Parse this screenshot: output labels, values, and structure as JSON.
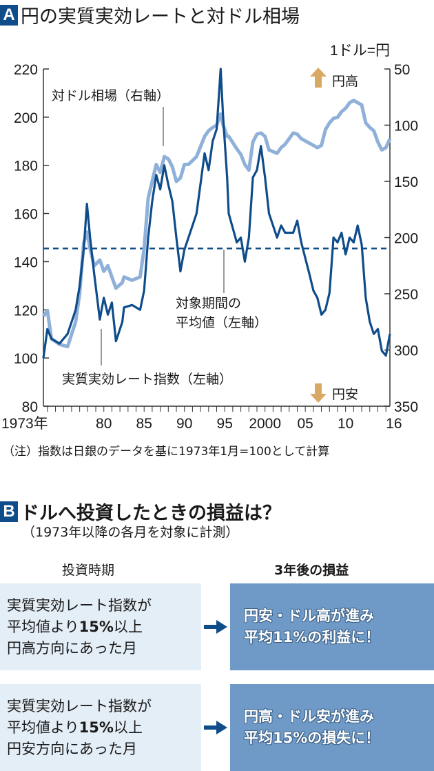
{
  "section_a": {
    "badge": "A",
    "title": "円の実質実効レートと対ドル相場",
    "note": "（注）指数は日銀のデータを基に1973年1月=100として計算"
  },
  "chart_data": {
    "type": "line",
    "title": "円の実質実効レートと対ドル相場",
    "xlabel": "",
    "x_ticks": [
      "1973年",
      "80",
      "85",
      "90",
      "95",
      "2000",
      "05",
      "10",
      "16"
    ],
    "x_range": [
      1973,
      2016
    ],
    "left_axis": {
      "label": "",
      "ticks": [
        80,
        100,
        120,
        140,
        160,
        180,
        200,
        220
      ],
      "range": [
        80,
        220
      ]
    },
    "right_axis": {
      "label": "1ドル=円",
      "ticks": [
        50,
        100,
        150,
        200,
        250,
        300,
        350
      ],
      "range": [
        50,
        350
      ],
      "inverted": true
    },
    "grid": false,
    "series": [
      {
        "name": "実質実効レート指数（左軸）",
        "axis": "left",
        "color": "#0f4c8a",
        "x": [
          1973.0,
          1973.5,
          1974,
          1975,
          1976,
          1977,
          1977.5,
          1978,
          1978.4,
          1978.8,
          1979.3,
          1980,
          1980.5,
          1981,
          1981.5,
          1982,
          1982.8,
          1983,
          1984,
          1985,
          1985.5,
          1986,
          1986.5,
          1987,
          1987.5,
          1988,
          1988.5,
          1989,
          1989.5,
          1990,
          1990.5,
          1991,
          1992,
          1993,
          1993.5,
          1994,
          1994.5,
          1995,
          1995.3,
          1995.8,
          1996,
          1997,
          1997.5,
          1998,
          1998.5,
          1999,
          1999.5,
          2000,
          2000.5,
          2001,
          2002,
          2002.5,
          2003,
          2004,
          2004.5,
          2005,
          2006,
          2006.5,
          2007,
          2007.5,
          2008,
          2008.5,
          2009,
          2009.5,
          2010,
          2010.5,
          2011,
          2011.5,
          2012,
          2012.5,
          2013,
          2013.5,
          2014,
          2014.5,
          2015,
          2015.5,
          2016
        ],
        "values": [
          100,
          112,
          108,
          106,
          110,
          120,
          130,
          145,
          164,
          150,
          135,
          116,
          125,
          118,
          123,
          107,
          115,
          121,
          122,
          120,
          128,
          150,
          165,
          176,
          170,
          180,
          172,
          165,
          150,
          136,
          145,
          150,
          160,
          185,
          178,
          190,
          195,
          220,
          200,
          175,
          160,
          148,
          150,
          140,
          150,
          175,
          178,
          188,
          175,
          160,
          150,
          155,
          152,
          152,
          157,
          148,
          135,
          128,
          125,
          118,
          120,
          127,
          150,
          148,
          152,
          143,
          150,
          148,
          155,
          147,
          125,
          115,
          110,
          112,
          103,
          101,
          110
        ]
      },
      {
        "name": "対ドル相場（右軸）",
        "axis": "right",
        "color": "#8fb0d8",
        "x": [
          1973.0,
          1973.5,
          1974,
          1975,
          1976,
          1977,
          1977.5,
          1978,
          1978.4,
          1978.8,
          1979.3,
          1980,
          1980.5,
          1981,
          1981.5,
          1982,
          1982.8,
          1983,
          1984,
          1985,
          1985.5,
          1986,
          1986.5,
          1987,
          1987.5,
          1988,
          1988.5,
          1989,
          1989.5,
          1990,
          1990.5,
          1991,
          1992,
          1993,
          1993.5,
          1994,
          1994.5,
          1995,
          1995.3,
          1995.8,
          1996,
          1997,
          1997.5,
          1998,
          1998.5,
          1999,
          1999.5,
          2000,
          2000.5,
          2001,
          2002,
          2002.5,
          2003,
          2004,
          2004.5,
          2005,
          2006,
          2006.5,
          2007,
          2007.5,
          2008,
          2008.5,
          2009,
          2009.5,
          2010,
          2010.5,
          2011,
          2011.5,
          2012,
          2012.5,
          2013,
          2013.5,
          2014,
          2014.5,
          2015,
          2015.5,
          2016
        ],
        "values": [
          270,
          265,
          290,
          295,
          297,
          275,
          250,
          205,
          195,
          210,
          225,
          220,
          230,
          225,
          235,
          245,
          240,
          235,
          238,
          235,
          210,
          165,
          150,
          135,
          142,
          128,
          130,
          137,
          150,
          147,
          135,
          135,
          128,
          110,
          105,
          102,
          100,
          90,
          100,
          110,
          110,
          121,
          126,
          135,
          140,
          115,
          108,
          107,
          110,
          122,
          125,
          120,
          117,
          107,
          108,
          112,
          116,
          118,
          120,
          118,
          104,
          98,
          94,
          93,
          88,
          85,
          80,
          78,
          80,
          82,
          98,
          102,
          105,
          115,
          122,
          120,
          112
        ]
      },
      {
        "name": "対象期間の平均値（左軸）",
        "axis": "left",
        "style": "dashed",
        "color": "#0f4c8a",
        "value": 145.5
      }
    ],
    "annotations": [
      {
        "text": "対ドル相場（右軸）",
        "points_to": "対ドル相場 series near 1987"
      },
      {
        "text": "実質実効レート指数（左軸）",
        "points_to": "REER series near 1979.5"
      },
      {
        "text": "対象期間の平均値（左軸）",
        "points_to": "dashed mean line near 1996"
      },
      {
        "text": "円高",
        "icon": "up-arrow",
        "color": "#d9a862"
      },
      {
        "text": "円安",
        "icon": "down-arrow",
        "color": "#d9a862"
      }
    ],
    "legend_position": "inline annotations"
  },
  "chart_labels": {
    "unit_right": "1ドル=円",
    "series_fx": "対ドル相場（右軸）",
    "series_reer": "実質実効レート指数（左軸）",
    "mean_line_l1": "対象期間の",
    "mean_line_l2": "平均値（左軸）",
    "yen_strong": "円高",
    "yen_weak": "円安",
    "left_ticks": [
      "220",
      "200",
      "180",
      "160",
      "140",
      "120",
      "100",
      "80"
    ],
    "right_ticks": [
      "50",
      "100",
      "150",
      "200",
      "250",
      "300",
      "350"
    ],
    "x_ticks": [
      "1973年",
      "80",
      "85",
      "90",
      "95",
      "2000",
      "05",
      "10",
      "16"
    ]
  },
  "section_b": {
    "badge": "B",
    "title": "ドルへ投資したときの損益は？",
    "subtitle": "（1973年以降の各月を対象に計測）",
    "col_left": "投資時期",
    "col_right": "3年後の損益",
    "rows": [
      {
        "left": [
          "実質実効レート指数が",
          "平均値より15%以上",
          "円高方向にあった月"
        ],
        "right": [
          "円安・ドル高が進み",
          "平均11%の利益に！"
        ]
      },
      {
        "left": [
          "実質実効レート指数が",
          "平均値より15%以上",
          "円安方向にあった月"
        ],
        "right": [
          "円高・ドル安が進み",
          "平均15%の損失に！"
        ]
      }
    ]
  },
  "colors": {
    "navy": "#0f4c8a",
    "light_blue_series": "#8fb0d8",
    "arrow_gold": "#d9a862",
    "box_light": "#e4eef6",
    "box_dark": "#6f9ac8"
  }
}
